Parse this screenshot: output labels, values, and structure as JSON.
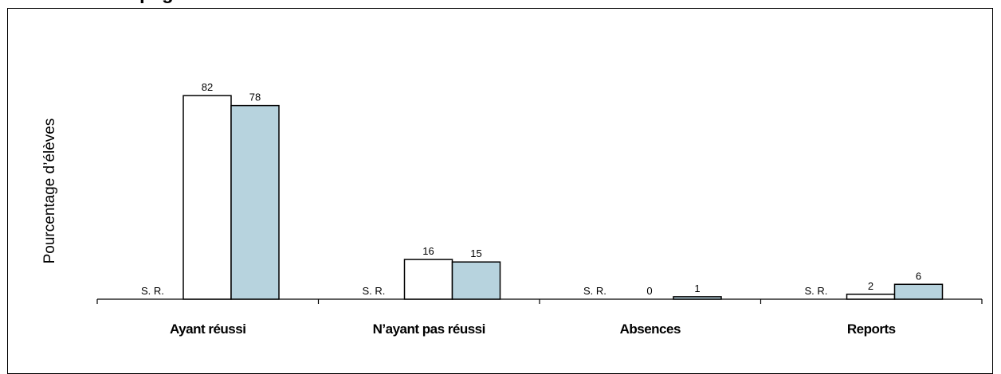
{
  "page": {
    "title_fragment": "pag"
  },
  "colors": {
    "series1_fill": "#ffffff",
    "series2_fill": "#b7d3de",
    "stroke": "#000000"
  },
  "chart_data": {
    "type": "bar",
    "title": "",
    "xlabel": "",
    "ylabel": "Pourcentage d’élèves",
    "ylim": [
      0,
      100
    ],
    "grid": false,
    "legend": "none",
    "categories": [
      "Ayant réussi",
      "N’ayant pas réussi",
      "Absences",
      "Reports"
    ],
    "group_note": "S. R.",
    "series": [
      {
        "values": [
          82,
          16,
          0,
          2
        ],
        "color": "#ffffff"
      },
      {
        "values": [
          78,
          15,
          1,
          6
        ],
        "color": "#b7d3de"
      }
    ]
  }
}
